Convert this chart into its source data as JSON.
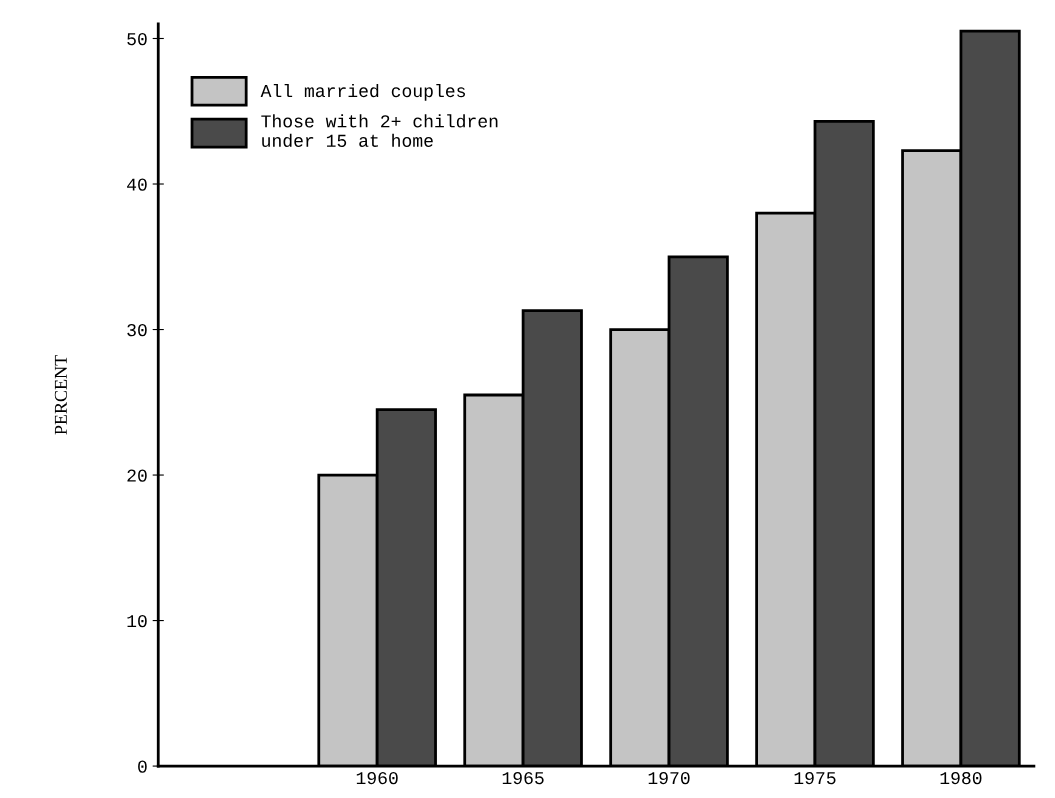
{
  "chart_data": {
    "type": "bar",
    "ylabel": "PERCENT",
    "categories": [
      "1960",
      "1965",
      "1970",
      "1975",
      "1980"
    ],
    "series": [
      {
        "name": "All married couples",
        "color": "#c4c4c4",
        "values": [
          20,
          25.5,
          30,
          38,
          42.3
        ]
      },
      {
        "name": "Those with 2+ children\nunder 15 at home",
        "color": "#4a4a4a",
        "values": [
          24.5,
          31.3,
          35,
          44.3,
          50.5
        ]
      }
    ],
    "ylim": [
      0,
      51
    ],
    "yticks": [
      0,
      10,
      20,
      30,
      40,
      50
    ],
    "grid": false,
    "legend": "top left"
  }
}
